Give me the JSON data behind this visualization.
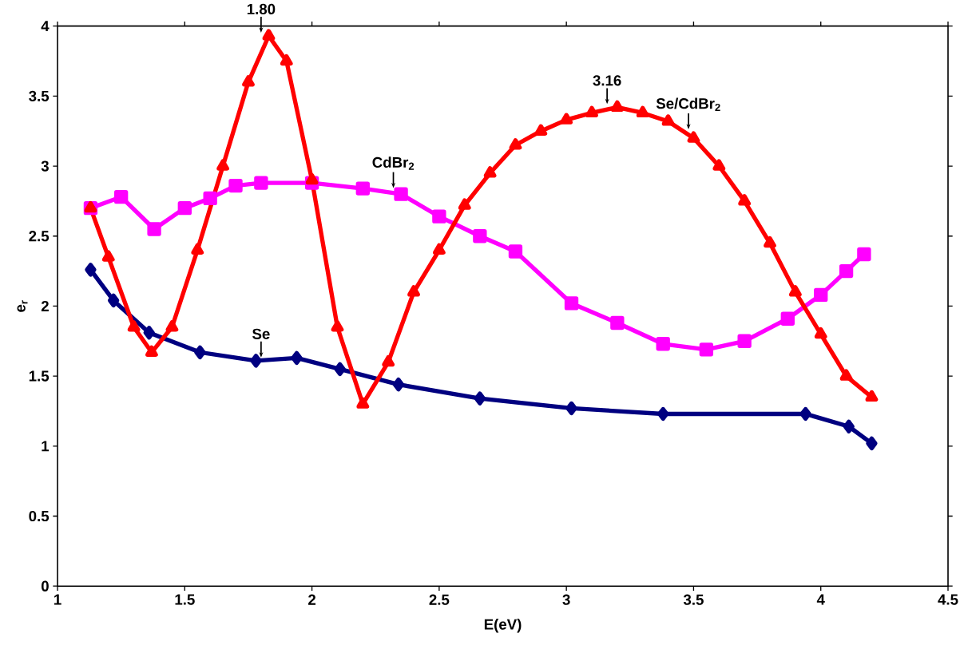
{
  "chart_data": {
    "type": "line",
    "xlabel": "E(eV)",
    "ylabel": "e$_{r}$",
    "xlim": [
      1,
      4.5
    ],
    "xticks": [
      1,
      1.5,
      2,
      2.5,
      3,
      3.5,
      4,
      4.5
    ],
    "ylim": [
      0,
      4
    ],
    "yticks": [
      0,
      0.5,
      1,
      1.5,
      2,
      2.5,
      3,
      3.5,
      4
    ],
    "grid": false,
    "legend": false,
    "series": [
      {
        "color": "#000080",
        "marker": "diamond",
        "x": [
          1.13,
          1.22,
          1.36,
          1.56,
          1.78,
          1.94,
          2.11,
          2.34,
          2.66,
          3.02,
          3.38,
          3.94,
          4.11,
          4.2
        ],
        "values": [
          2.26,
          2.04,
          1.81,
          1.67,
          1.61,
          1.63,
          1.55,
          1.44,
          1.34,
          1.27,
          1.23,
          1.23,
          1.14,
          1.02
        ]
      },
      {
        "color": "#ff00ff",
        "marker": "square",
        "x": [
          1.13,
          1.25,
          1.38,
          1.5,
          1.6,
          1.7,
          1.8,
          2.0,
          2.2,
          2.35,
          2.5,
          2.66,
          2.8,
          3.02,
          3.2,
          3.38,
          3.55,
          3.7,
          3.87,
          4.0,
          4.1,
          4.17
        ],
        "values": [
          2.7,
          2.78,
          2.55,
          2.7,
          2.77,
          2.86,
          2.88,
          2.88,
          2.84,
          2.8,
          2.64,
          2.5,
          2.39,
          2.02,
          1.88,
          1.73,
          1.69,
          1.75,
          1.91,
          2.08,
          2.25,
          2.37
        ]
      },
      {
        "color": "#ff0000",
        "marker": "triangle",
        "x": [
          1.13,
          1.2,
          1.3,
          1.37,
          1.45,
          1.55,
          1.65,
          1.75,
          1.83,
          1.9,
          2.0,
          2.1,
          2.2,
          2.3,
          2.4,
          2.5,
          2.6,
          2.7,
          2.8,
          2.9,
          3.0,
          3.1,
          3.2,
          3.3,
          3.4,
          3.5,
          3.6,
          3.7,
          3.8,
          3.9,
          4.0,
          4.1,
          4.2
        ],
        "values": [
          2.7,
          2.35,
          1.85,
          1.67,
          1.85,
          2.4,
          3.0,
          3.6,
          3.93,
          3.75,
          2.9,
          1.85,
          1.3,
          1.6,
          2.1,
          2.4,
          2.72,
          2.95,
          3.15,
          3.25,
          3.33,
          3.38,
          3.42,
          3.38,
          3.32,
          3.2,
          3.0,
          2.75,
          2.45,
          2.1,
          1.8,
          1.5,
          1.35
        ]
      }
    ],
    "annotations": [
      {
        "text": "1.80",
        "x": 1.8,
        "y": 3.93
      },
      {
        "text": "3.16",
        "x": 3.16,
        "y": 3.42
      },
      {
        "text": "CdBr$_{2}$",
        "x": 2.32,
        "y": 2.82
      },
      {
        "text": "Se",
        "x": 1.8,
        "y": 1.61
      },
      {
        "text": "Se/CdBr$_{2}$",
        "x": 3.48,
        "y": 3.24
      }
    ]
  }
}
